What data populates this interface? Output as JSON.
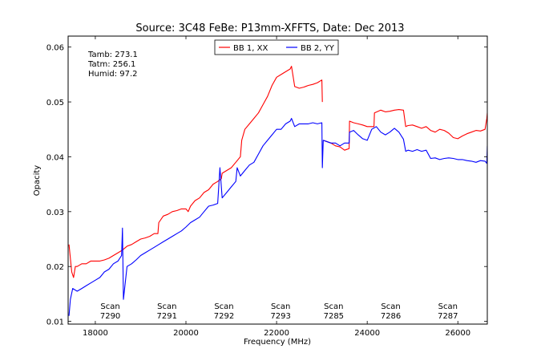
{
  "chart_data": {
    "type": "line",
    "title": "Source: 3C48 FeBe: P13mm-XFFTS, Date: Dec 2013",
    "xlabel": "Frequency (MHz)",
    "ylabel": "Opacity",
    "xlim": [
      17400,
      26650
    ],
    "ylim": [
      0.0095,
      0.062
    ],
    "xticks": [
      18000,
      20000,
      22000,
      24000,
      26000
    ],
    "yticks": [
      0.01,
      0.02,
      0.03,
      0.04,
      0.05,
      0.06
    ],
    "ytick_labels": [
      "0.01",
      "0.02",
      "0.03",
      "0.04",
      "0.05",
      "0.06"
    ],
    "grid": false,
    "legend_position": "top-center",
    "annotations": {
      "conditions": [
        "Tamb: 273.1",
        "Tatm: 256.1",
        "Humid: 97.2"
      ]
    },
    "scans": [
      {
        "label": "Scan",
        "number": "7290",
        "x": 18330
      },
      {
        "label": "Scan",
        "number": "7291",
        "x": 19580
      },
      {
        "label": "Scan",
        "number": "7292",
        "x": 20840
      },
      {
        "label": "Scan",
        "number": "7293",
        "x": 22090
      },
      {
        "label": "Scan",
        "number": "7285",
        "x": 23260
      },
      {
        "label": "Scan",
        "number": "7286",
        "x": 24520
      },
      {
        "label": "Scan",
        "number": "7287",
        "x": 25780
      }
    ],
    "series": [
      {
        "name": "BB 1, XX",
        "color": "#ff0000",
        "x": [
          17420,
          17480,
          17520,
          17560,
          17600,
          17700,
          17800,
          17900,
          18000,
          18100,
          18200,
          18300,
          18400,
          18500,
          18600,
          18700,
          18800,
          18900,
          19000,
          19100,
          19200,
          19300,
          19380,
          19400,
          19500,
          19600,
          19700,
          19800,
          19900,
          20000,
          20050,
          20100,
          20200,
          20300,
          20400,
          20500,
          20600,
          20700,
          20780,
          20800,
          20900,
          21000,
          21100,
          21200,
          21230,
          21300,
          21400,
          21500,
          21600,
          21700,
          21800,
          21900,
          22000,
          22100,
          22200,
          22300,
          22330,
          22400,
          22500,
          22600,
          22700,
          22800,
          22900,
          23000,
          23010,
          null,
          23030,
          23100,
          23200,
          23300,
          23400,
          23500,
          23600,
          23610,
          23700,
          23800,
          23900,
          24000,
          24150,
          24160,
          24300,
          24400,
          24500,
          24600,
          24700,
          24800,
          24850,
          24900,
          25000,
          25100,
          25200,
          25300,
          25400,
          25500,
          25600,
          25700,
          25800,
          25900,
          26000,
          26100,
          26200,
          26300,
          26400,
          26500,
          26600,
          26640,
          26650
        ],
        "y": [
          0.024,
          0.019,
          0.018,
          0.02,
          0.02,
          0.0205,
          0.0205,
          0.021,
          0.021,
          0.021,
          0.0212,
          0.0215,
          0.022,
          0.0225,
          0.023,
          0.0237,
          0.024,
          0.0245,
          0.025,
          0.0252,
          0.0255,
          0.026,
          0.026,
          0.028,
          0.0292,
          0.0295,
          0.03,
          0.0302,
          0.0305,
          0.0305,
          0.03,
          0.031,
          0.032,
          0.0325,
          0.0335,
          0.034,
          0.035,
          0.0355,
          0.036,
          0.037,
          0.0375,
          0.038,
          0.039,
          0.04,
          0.043,
          0.045,
          0.046,
          0.047,
          0.048,
          0.0495,
          0.051,
          0.053,
          0.0545,
          0.055,
          0.0555,
          0.056,
          0.0565,
          0.0528,
          0.0525,
          0.0527,
          0.053,
          0.0532,
          0.0535,
          0.054,
          0.05,
          null,
          0.043,
          0.0428,
          0.0425,
          0.042,
          0.0418,
          0.0412,
          0.0415,
          0.0465,
          0.0462,
          0.046,
          0.0458,
          0.0455,
          0.0455,
          0.048,
          0.0485,
          0.0482,
          0.0483,
          0.0485,
          0.0486,
          0.0485,
          0.0455,
          0.0457,
          0.0458,
          0.0455,
          0.0452,
          0.0455,
          0.0448,
          0.0445,
          0.045,
          0.0448,
          0.0443,
          0.0435,
          0.0433,
          0.0438,
          0.0442,
          0.0445,
          0.0448,
          0.0447,
          0.045,
          0.047,
          0.048
        ]
      },
      {
        "name": "BB 2, YY",
        "color": "#0000ff",
        "x": [
          17420,
          17450,
          17500,
          17600,
          17700,
          17800,
          17900,
          18000,
          18100,
          18200,
          18300,
          18400,
          18500,
          18580,
          18600,
          18620,
          18700,
          18800,
          18900,
          19000,
          19100,
          19200,
          19300,
          19400,
          19500,
          19600,
          19700,
          19800,
          19900,
          20000,
          20100,
          20200,
          20300,
          20400,
          20500,
          20600,
          20700,
          20750,
          20800,
          20900,
          21000,
          21100,
          21130,
          21200,
          21300,
          21400,
          21500,
          21600,
          21700,
          21800,
          21900,
          22000,
          22100,
          22200,
          22300,
          22330,
          22400,
          22500,
          22600,
          22700,
          22800,
          22900,
          23000,
          23010,
          23030,
          23100,
          23200,
          23300,
          23400,
          23500,
          23600,
          23610,
          23700,
          23800,
          23900,
          24000,
          24100,
          24200,
          24300,
          24400,
          24500,
          24600,
          24700,
          24800,
          24850,
          24900,
          25000,
          25100,
          25200,
          25300,
          25400,
          25500,
          25600,
          25700,
          25800,
          25900,
          26000,
          26100,
          26200,
          26300,
          26400,
          26500,
          26600,
          26640,
          26650
        ],
        "y": [
          0.011,
          0.014,
          0.016,
          0.0155,
          0.016,
          0.0165,
          0.017,
          0.0175,
          0.018,
          0.019,
          0.0195,
          0.0205,
          0.021,
          0.022,
          0.027,
          0.014,
          0.02,
          0.0205,
          0.0212,
          0.022,
          0.0225,
          0.023,
          0.0235,
          0.024,
          0.0245,
          0.025,
          0.0255,
          0.026,
          0.0265,
          0.0272,
          0.028,
          0.0285,
          0.029,
          0.03,
          0.031,
          0.0312,
          0.0315,
          0.038,
          0.0325,
          0.0335,
          0.0345,
          0.0355,
          0.038,
          0.0365,
          0.0375,
          0.0385,
          0.039,
          0.0405,
          0.042,
          0.043,
          0.044,
          0.045,
          0.045,
          0.046,
          0.0465,
          0.047,
          0.0455,
          0.046,
          0.046,
          0.046,
          0.0462,
          0.046,
          0.0462,
          0.038,
          0.043,
          0.0428,
          0.0425,
          0.0425,
          0.042,
          0.0425,
          0.0425,
          0.0445,
          0.0448,
          0.044,
          0.0433,
          0.043,
          0.045,
          0.0455,
          0.0445,
          0.044,
          0.0445,
          0.0452,
          0.0445,
          0.0432,
          0.041,
          0.0412,
          0.041,
          0.0413,
          0.041,
          0.0412,
          0.0397,
          0.0398,
          0.0395,
          0.0397,
          0.0398,
          0.0397,
          0.0395,
          0.0395,
          0.0393,
          0.0392,
          0.039,
          0.0393,
          0.0392,
          0.0388,
          0.042
        ]
      }
    ]
  }
}
